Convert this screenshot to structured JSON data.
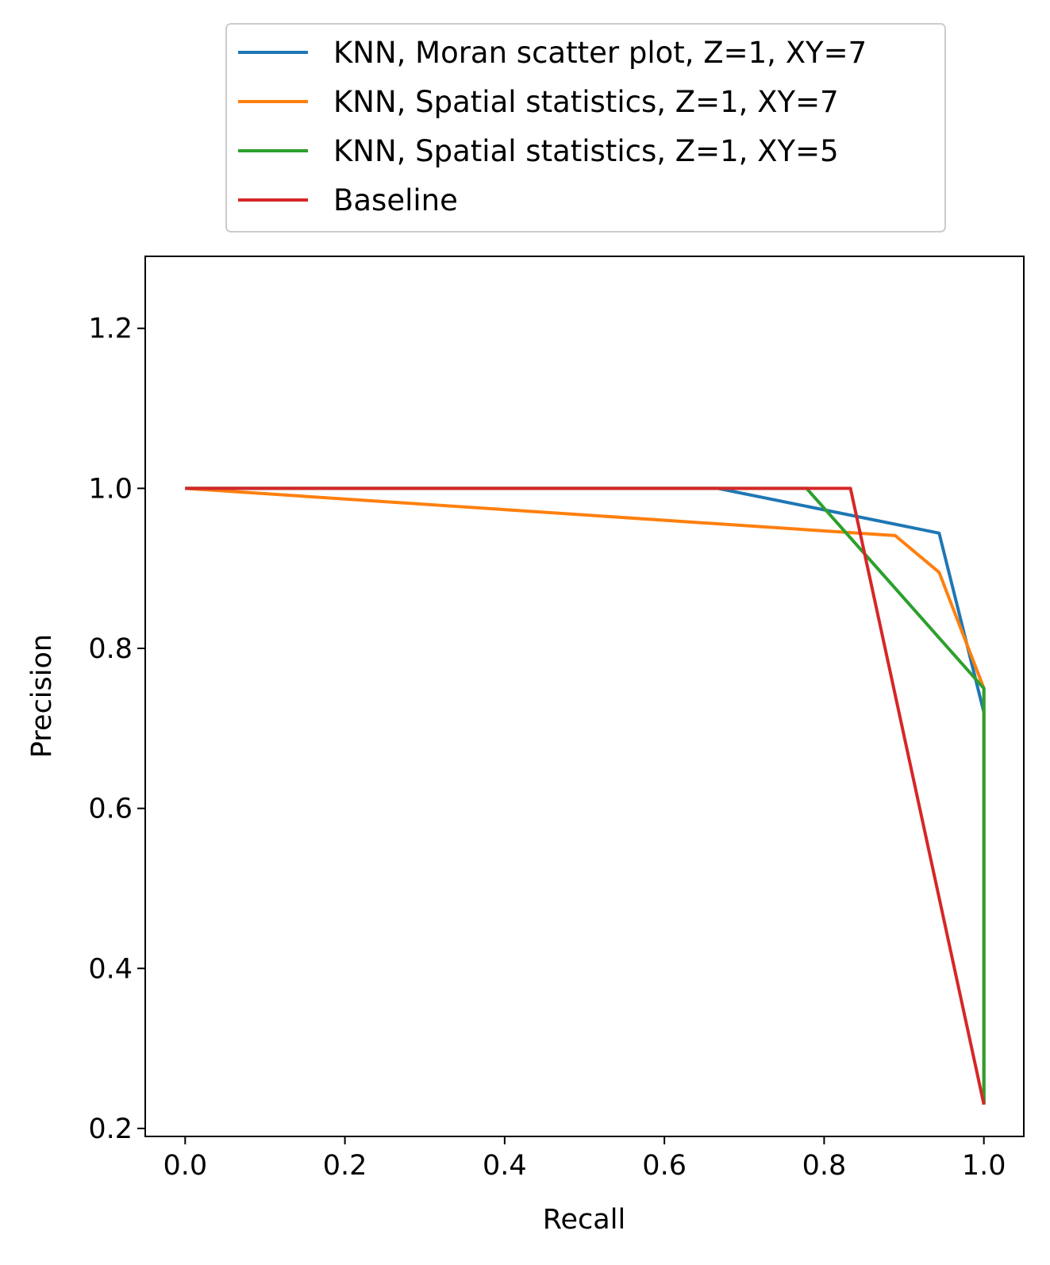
{
  "chart_data": {
    "type": "line",
    "xlabel": "Recall",
    "ylabel": "Precision",
    "xlim": [
      -0.05,
      1.05
    ],
    "ylim": [
      0.19,
      1.29
    ],
    "xticks": [
      0.0,
      0.2,
      0.4,
      0.6,
      0.8,
      1.0
    ],
    "xtick_labels": [
      "0.0",
      "0.2",
      "0.4",
      "0.6",
      "0.8",
      "1.0"
    ],
    "yticks": [
      0.2,
      0.4,
      0.6,
      0.8,
      1.0,
      1.2
    ],
    "ytick_labels": [
      "0.2",
      "0.4",
      "0.6",
      "0.8",
      "1.0",
      "1.2"
    ],
    "grid": false,
    "legend_position": "above plot",
    "series": [
      {
        "name": "KNN, Moran scatter plot, Z=1, XY=7",
        "color": "#1f77b4",
        "x": [
          0.0,
          0.667,
          0.944,
          1.0,
          1.0
        ],
        "y": [
          1.0,
          1.0,
          0.944,
          0.72,
          0.23
        ]
      },
      {
        "name": "KNN, Spatial statistics, Z=1, XY=7",
        "color": "#ff7f0e",
        "x": [
          0.0,
          0.889,
          0.944,
          1.0,
          1.0
        ],
        "y": [
          1.0,
          0.941,
          0.895,
          0.75,
          0.23
        ]
      },
      {
        "name": "KNN, Spatial statistics, Z=1, XY=5",
        "color": "#2ca02c",
        "x": [
          0.0,
          0.778,
          1.0,
          1.0
        ],
        "y": [
          1.0,
          1.0,
          0.75,
          0.23
        ]
      },
      {
        "name": "Baseline",
        "color": "#d62728",
        "x": [
          0.0,
          0.833,
          1.0
        ],
        "y": [
          1.0,
          1.0,
          0.23
        ]
      }
    ]
  }
}
